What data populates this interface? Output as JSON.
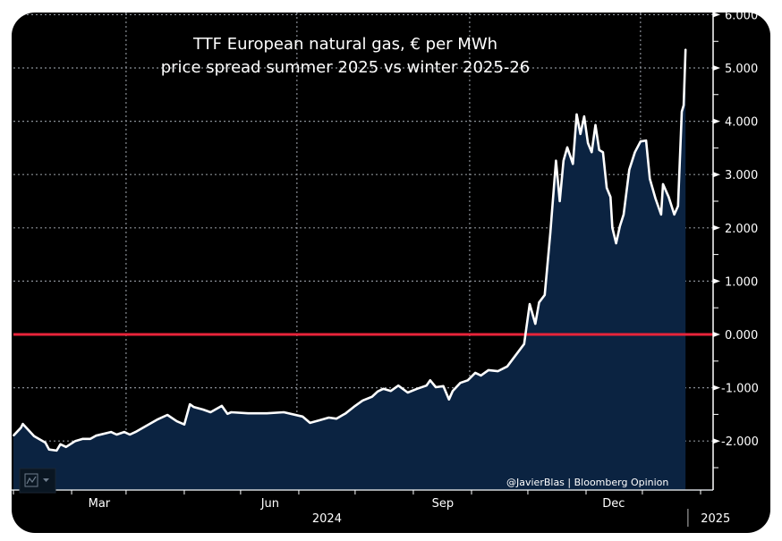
{
  "chart_data": {
    "type": "area",
    "title": "TTF European natural gas, € per MWh",
    "subtitle": "price spread summer 2025 vs winter 2025-26",
    "xlabel": "",
    "ylabel": "",
    "ylim": [
      -3.0,
      6.0
    ],
    "y_ticks": [
      {
        "value": 6,
        "label": "6.000"
      },
      {
        "value": 5,
        "label": "5.000"
      },
      {
        "value": 4,
        "label": "4.000"
      },
      {
        "value": 3,
        "label": "3.000"
      },
      {
        "value": 2,
        "label": "2.000"
      },
      {
        "value": 1,
        "label": "1.000"
      },
      {
        "value": 0,
        "label": "0.000"
      },
      {
        "value": -1,
        "label": "-1.000"
      },
      {
        "value": -2,
        "label": "-2.000"
      }
    ],
    "x_ticks": [
      {
        "label": "Mar",
        "day": 61
      },
      {
        "label": "Jun",
        "day": 152
      },
      {
        "label": "Sep",
        "day": 244
      },
      {
        "label": "Dec",
        "day": 335
      }
    ],
    "year_labels": [
      {
        "label": "2024",
        "day": 168
      },
      {
        "label": "2025",
        "day": 375
      }
    ],
    "year_divider_day": 366,
    "x_units": "days since Jan 1, 2024",
    "xlim": [
      0,
      392
    ],
    "reference_line": {
      "value": 0,
      "color": "#e8243a"
    },
    "grid": true,
    "line_color": "#ffffff",
    "fill_color": "#0b2341",
    "series": [
      {
        "name": "Summer 2025 vs Winter 2025-26 spread",
        "x": [
          1,
          5,
          6,
          12,
          18,
          20,
          24,
          26,
          29,
          34,
          38,
          42,
          45,
          53,
          56,
          60,
          63,
          66,
          71,
          78,
          83,
          88,
          92,
          95,
          97,
          102,
          106,
          112,
          115,
          117,
          126,
          136,
          145,
          155,
          159,
          164,
          169,
          173,
          178,
          183,
          187,
          192,
          195,
          198,
          202,
          206,
          211,
          216,
          221,
          223,
          226,
          230,
          233,
          235,
          239,
          243,
          247,
          250,
          254,
          259,
          264,
          273,
          276,
          279,
          281,
          284,
          287,
          290,
          292,
          294,
          296,
          299,
          301,
          303,
          305,
          307,
          309,
          311,
          313,
          315,
          317,
          319,
          320,
          322,
          324,
          326,
          329,
          332,
          335,
          338,
          340,
          343,
          346,
          347,
          350,
          353,
          355,
          357,
          358,
          359
        ],
        "values": [
          -1.9,
          -1.75,
          -1.68,
          -1.91,
          -2.03,
          -2.16,
          -2.18,
          -2.06,
          -2.11,
          -2.0,
          -1.96,
          -1.96,
          -1.9,
          -1.83,
          -1.88,
          -1.83,
          -1.88,
          -1.83,
          -1.73,
          -1.59,
          -1.51,
          -1.63,
          -1.69,
          -1.31,
          -1.36,
          -1.41,
          -1.46,
          -1.34,
          -1.49,
          -1.46,
          -1.48,
          -1.48,
          -1.46,
          -1.54,
          -1.66,
          -1.61,
          -1.56,
          -1.58,
          -1.48,
          -1.34,
          -1.24,
          -1.17,
          -1.07,
          -1.02,
          -1.06,
          -0.96,
          -1.09,
          -1.02,
          -0.96,
          -0.86,
          -0.99,
          -0.97,
          -1.22,
          -1.06,
          -0.91,
          -0.86,
          -0.72,
          -0.77,
          -0.67,
          -0.69,
          -0.6,
          -0.18,
          0.57,
          0.2,
          0.6,
          0.74,
          1.91,
          3.26,
          2.5,
          3.26,
          3.51,
          3.2,
          4.13,
          3.76,
          4.09,
          3.59,
          3.42,
          3.93,
          3.46,
          3.42,
          2.75,
          2.58,
          2.0,
          1.71,
          2.03,
          2.25,
          3.09,
          3.42,
          3.62,
          3.64,
          2.92,
          2.55,
          2.25,
          2.82,
          2.58,
          2.25,
          2.41,
          4.18,
          4.3,
          5.35
        ]
      }
    ]
  },
  "credit": "@JavierBlas | Bloomberg Opinion",
  "chart_type_button": {
    "icon": "line-chart-icon",
    "dropdown_icon": "caret-down-icon"
  }
}
